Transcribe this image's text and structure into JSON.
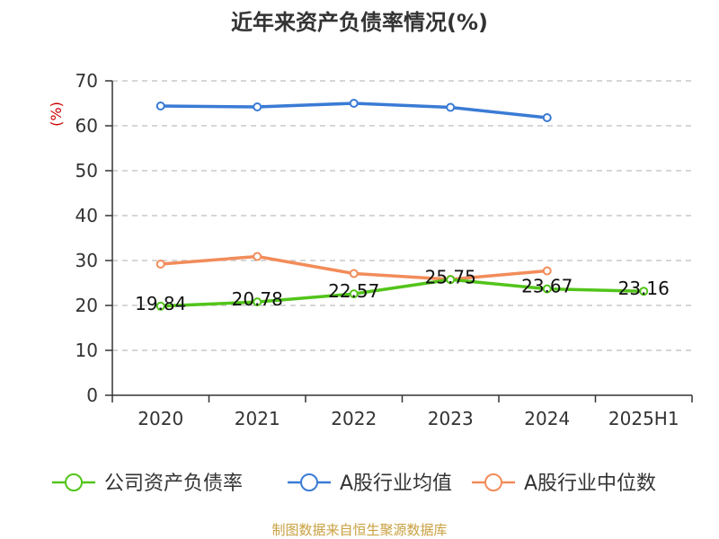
{
  "chart_data": {
    "type": "line",
    "title": "近年来资产负债率情况(%)",
    "ylabel": "(%)",
    "xlabel": "",
    "categories": [
      "2020",
      "2021",
      "2022",
      "2023",
      "2024",
      "2025H1"
    ],
    "ylim": [
      0,
      70
    ],
    "yticks": [
      0,
      10,
      20,
      30,
      40,
      50,
      60,
      70
    ],
    "grid": true,
    "legend_position": "bottom",
    "series": [
      {
        "name": "公司资产负债率",
        "color": "#52c41a",
        "values": [
          19.84,
          20.78,
          22.57,
          25.75,
          23.67,
          23.16
        ],
        "labels": [
          "19.84",
          "20.78",
          "22.57",
          "25.75",
          "23.67",
          "23.16"
        ]
      },
      {
        "name": "A股行业均值",
        "color": "#3a7bd5",
        "values": [
          64.4,
          64.2,
          65.0,
          64.1,
          61.8,
          null
        ]
      },
      {
        "name": "A股行业中位数",
        "color": "#f28c5a",
        "values": [
          29.2,
          30.9,
          27.1,
          25.8,
          27.7,
          null
        ]
      }
    ]
  },
  "footer": {
    "source": "制图数据来自恒生聚源数据库"
  }
}
